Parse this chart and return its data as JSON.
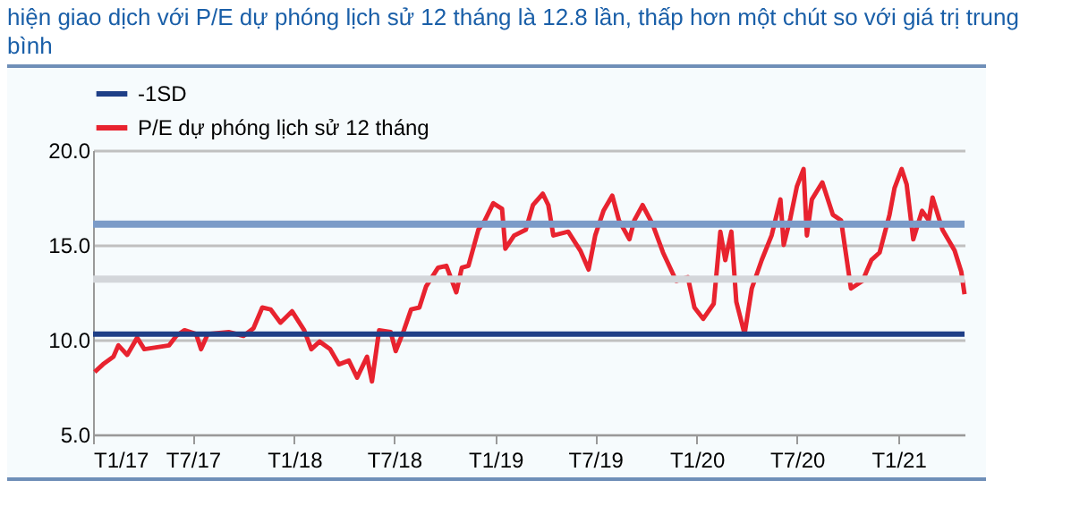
{
  "chart_data": {
    "type": "line",
    "title": "hiện giao dịch với P/E dự phóng lịch sử 12 tháng là 12.8 lần, thấp hơn một chút so với giá trị trung bình",
    "x": [
      "2017-01-04",
      "2017-01-19",
      "2017-02-07",
      "2017-02-16",
      "2017-03-04",
      "2017-03-22",
      "2017-04-04",
      "2017-05-19",
      "2017-06-01",
      "2017-06-16",
      "2017-07-07",
      "2017-07-16",
      "2017-07-28",
      "2017-09-04",
      "2017-10-01",
      "2017-10-19",
      "2017-11-04",
      "2017-11-19",
      "2017-12-07",
      "2017-12-28",
      "2018-01-19",
      "2018-02-01",
      "2018-02-16",
      "2018-03-07",
      "2018-03-23",
      "2018-04-10",
      "2018-04-25",
      "2018-05-13",
      "2018-05-22",
      "2018-06-04",
      "2018-06-25",
      "2018-07-04",
      "2018-07-19",
      "2018-08-01",
      "2018-08-16",
      "2018-08-28",
      "2018-09-19",
      "2018-10-04",
      "2018-10-22",
      "2018-11-01",
      "2018-11-13",
      "2018-12-01",
      "2018-12-13",
      "2018-12-28",
      "2019-01-13",
      "2019-01-19",
      "2019-02-04",
      "2019-02-25",
      "2019-03-10",
      "2019-03-28",
      "2019-04-07",
      "2019-04-16",
      "2019-05-13",
      "2019-06-04",
      "2019-06-19",
      "2019-07-01",
      "2019-07-16",
      "2019-08-01",
      "2019-08-13",
      "2019-09-01",
      "2019-09-10",
      "2019-09-25",
      "2019-10-13",
      "2019-11-01",
      "2019-11-25",
      "2019-12-16",
      "2019-12-28",
      "2020-01-13",
      "2020-02-01",
      "2020-02-13",
      "2020-02-22",
      "2020-03-04",
      "2020-03-13",
      "2020-03-28",
      "2020-04-10",
      "2020-04-28",
      "2020-05-16",
      "2020-06-01",
      "2020-06-07",
      "2020-06-19",
      "2020-07-01",
      "2020-07-13",
      "2020-07-19",
      "2020-07-28",
      "2020-08-16",
      "2020-09-04",
      "2020-09-19",
      "2020-10-07",
      "2020-10-28",
      "2020-11-13",
      "2020-11-28",
      "2020-12-16",
      "2020-12-25",
      "2021-01-07",
      "2021-01-16",
      "2021-01-28",
      "2021-02-13",
      "2021-02-25",
      "2021-03-04",
      "2021-03-22",
      "2021-04-13",
      "2021-04-25",
      "2021-05-01"
    ],
    "series": [
      {
        "name": "P/E dự phóng lịch sử 12 tháng",
        "color": "#e8232f",
        "values": [
          8.3,
          8.7,
          9.1,
          9.7,
          9.2,
          10.1,
          9.5,
          9.7,
          10.2,
          10.5,
          10.3,
          9.5,
          10.3,
          10.4,
          10.2,
          10.6,
          11.7,
          11.6,
          10.9,
          11.5,
          10.5,
          9.5,
          9.9,
          9.5,
          8.7,
          8.9,
          8.0,
          9.1,
          7.8,
          10.5,
          10.4,
          9.4,
          10.5,
          11.6,
          11.7,
          12.8,
          13.8,
          13.9,
          12.5,
          13.8,
          13.9,
          15.8,
          16.3,
          17.2,
          16.9,
          14.8,
          15.5,
          15.8,
          17.1,
          17.7,
          17.1,
          15.5,
          15.7,
          14.7,
          13.7,
          15.5,
          16.8,
          17.6,
          16.3,
          15.3,
          16.3,
          17.1,
          16.1,
          14.6,
          13.1,
          13.3,
          11.7,
          11.1,
          11.9,
          15.7,
          14.2,
          15.7,
          12.0,
          10.3,
          12.7,
          14.2,
          15.5,
          17.4,
          15.0,
          16.4,
          18.1,
          19.0,
          15.5,
          17.4,
          18.3,
          16.6,
          16.3,
          12.7,
          13.1,
          14.2,
          14.6,
          16.6,
          18.0,
          19.0,
          18.2,
          15.3,
          16.8,
          16.3,
          17.5,
          15.8,
          14.7,
          13.6,
          12.4
        ]
      }
    ],
    "ref_lines": [
      {
        "axis": "y",
        "value": 10.3,
        "label": "-1SD",
        "color": "#1f3f87"
      },
      {
        "axis": "y",
        "value": 16.1,
        "color": "#7b9bc8"
      },
      {
        "axis": "y",
        "value": 13.2,
        "color": "#d3d6da"
      }
    ],
    "xlim": [
      "2017-01-01",
      "2021-05-01"
    ],
    "xticks": [
      {
        "value": "2017-01",
        "label": "T1/17"
      },
      {
        "value": "2017-07",
        "label": "T7/17"
      },
      {
        "value": "2018-01",
        "label": "T1/18"
      },
      {
        "value": "2018-07",
        "label": "T7/18"
      },
      {
        "value": "2019-01",
        "label": "T1/19"
      },
      {
        "value": "2019-07",
        "label": "T7/19"
      },
      {
        "value": "2020-01",
        "label": "T1/20"
      },
      {
        "value": "2020-07",
        "label": "T7/20"
      },
      {
        "value": "2021-01",
        "label": "T1/21"
      }
    ],
    "ylim": [
      5,
      20
    ],
    "yticks": [
      {
        "value": 5,
        "label": "5.0"
      },
      {
        "value": 10,
        "label": "10.0"
      },
      {
        "value": 15,
        "label": "15.0"
      },
      {
        "value": 20,
        "label": "20.0"
      }
    ],
    "grid": "y",
    "legend": "top",
    "marker": "none",
    "line_style": "solid"
  }
}
